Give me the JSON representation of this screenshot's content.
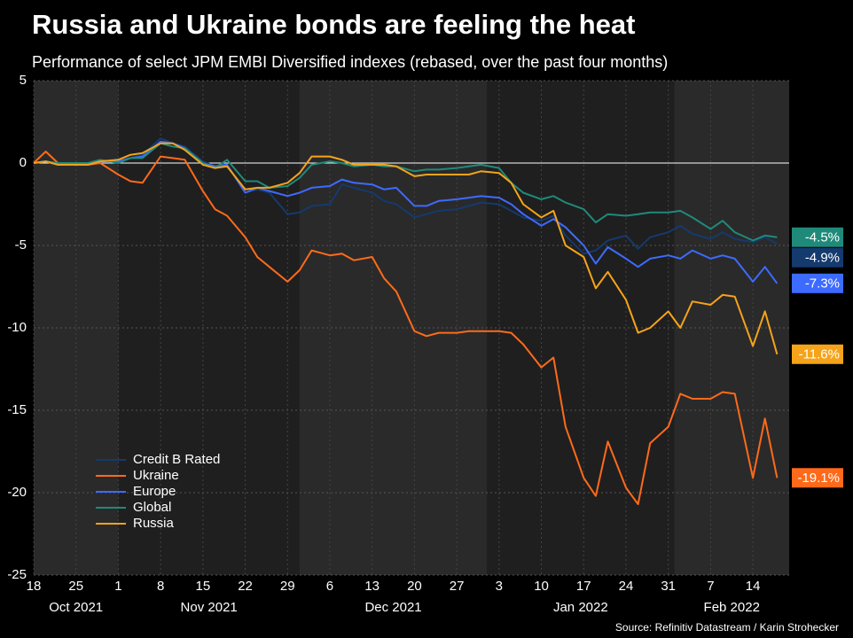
{
  "chart_data": {
    "type": "line",
    "title": "Russia and Ukraine bonds are feeling the heat",
    "subtitle": "Performance of select JPM EMBI Diversified indexes (rebased, over the past four months)",
    "source": "Source: Refinitiv Datastream / Karin Strohecker",
    "x": [
      "2021-10-18",
      "2021-10-20",
      "2021-10-22",
      "2021-10-25",
      "2021-10-27",
      "2021-10-29",
      "2021-11-01",
      "2021-11-03",
      "2021-11-05",
      "2021-11-08",
      "2021-11-10",
      "2021-11-12",
      "2021-11-15",
      "2021-11-17",
      "2021-11-19",
      "2021-11-22",
      "2021-11-24",
      "2021-11-26",
      "2021-11-29",
      "2021-12-01",
      "2021-12-03",
      "2021-12-06",
      "2021-12-08",
      "2021-12-10",
      "2021-12-13",
      "2021-12-15",
      "2021-12-17",
      "2021-12-20",
      "2021-12-22",
      "2021-12-24",
      "2021-12-27",
      "2021-12-29",
      "2021-12-31",
      "2022-01-03",
      "2022-01-05",
      "2022-01-07",
      "2022-01-10",
      "2022-01-12",
      "2022-01-14",
      "2022-01-17",
      "2022-01-19",
      "2022-01-21",
      "2022-01-24",
      "2022-01-26",
      "2022-01-28",
      "2022-01-31",
      "2022-02-02",
      "2022-02-04",
      "2022-02-07",
      "2022-02-09",
      "2022-02-11",
      "2022-02-14",
      "2022-02-16",
      "2022-02-18"
    ],
    "series": [
      {
        "name": "Credit B Rated",
        "color": "#143a6e",
        "last_value_label": "-4.9%",
        "values": [
          0,
          0.1,
          -0.1,
          -0.1,
          -0.1,
          0.1,
          0.1,
          0.3,
          0.5,
          1.5,
          1.2,
          1.0,
          0.1,
          -0.2,
          -0.1,
          -1.8,
          -1.6,
          -1.8,
          -3.1,
          -3.0,
          -2.6,
          -2.5,
          -1.3,
          -1.5,
          -1.8,
          -2.3,
          -2.5,
          -3.3,
          -3.1,
          -2.9,
          -2.8,
          -2.6,
          -2.4,
          -2.5,
          -2.9,
          -3.3,
          -3.5,
          -3.2,
          -4.4,
          -5.5,
          -5.3,
          -4.7,
          -4.4,
          -5.2,
          -4.5,
          -4.2,
          -3.8,
          -4.3,
          -4.6,
          -4.2,
          -4.6,
          -4.8,
          -4.5,
          -4.9
        ]
      },
      {
        "name": "Ukraine",
        "color": "#ff6a1a",
        "last_value_label": "-19.1%",
        "values": [
          0,
          0.7,
          0,
          -0.1,
          -0.1,
          0,
          -0.7,
          -1.1,
          -1.2,
          0.4,
          0.3,
          0.2,
          -1.7,
          -2.8,
          -3.2,
          -4.5,
          -5.7,
          -6.3,
          -7.2,
          -6.5,
          -5.3,
          -5.6,
          -5.5,
          -5.9,
          -5.7,
          -7.0,
          -7.8,
          -10.2,
          -10.5,
          -10.3,
          -10.3,
          -10.2,
          -10.2,
          -10.2,
          -10.3,
          -11.0,
          -12.4,
          -11.8,
          -16.0,
          -19.1,
          -20.2,
          -16.9,
          -19.7,
          -20.7,
          -17.0,
          -16.0,
          -14.0,
          -14.3,
          -14.3,
          -13.9,
          -14.0,
          -19.1,
          -15.5,
          -19.1
        ]
      },
      {
        "name": "Europe",
        "color": "#3d6bff",
        "last_value_label": "-7.3%",
        "values": [
          0,
          0.1,
          -0.1,
          -0.1,
          -0.1,
          0.1,
          0.1,
          0.3,
          0.4,
          1.3,
          1.2,
          0.9,
          0,
          -0.2,
          -0.1,
          -1.8,
          -1.5,
          -1.7,
          -2.0,
          -1.8,
          -1.5,
          -1.4,
          -1.0,
          -1.2,
          -1.3,
          -1.6,
          -1.5,
          -2.6,
          -2.6,
          -2.3,
          -2.2,
          -2.1,
          -2.0,
          -2.1,
          -2.5,
          -3.1,
          -3.8,
          -3.4,
          -3.9,
          -5.0,
          -6.1,
          -5.1,
          -5.8,
          -6.3,
          -5.8,
          -5.6,
          -5.8,
          -5.3,
          -5.8,
          -5.6,
          -5.8,
          -7.2,
          -6.3,
          -7.3
        ]
      },
      {
        "name": "Global",
        "color": "#1f8a7a",
        "last_value_label": "-4.5%",
        "values": [
          0,
          0.1,
          0,
          0,
          0,
          0.2,
          0,
          0.3,
          0.3,
          1.2,
          1.0,
          0.9,
          0,
          -0.3,
          0.2,
          -1.1,
          -1.1,
          -1.5,
          -1.4,
          -0.9,
          -0.1,
          0.1,
          0,
          -0.2,
          -0.1,
          -0.2,
          -0.2,
          -0.5,
          -0.4,
          -0.4,
          -0.3,
          -0.2,
          -0.1,
          -0.3,
          -1.2,
          -1.8,
          -2.2,
          -2.0,
          -2.4,
          -2.8,
          -3.6,
          -3.1,
          -3.2,
          -3.1,
          -3.0,
          -3.0,
          -2.9,
          -3.3,
          -4.0,
          -3.5,
          -4.2,
          -4.7,
          -4.4,
          -4.5
        ]
      },
      {
        "name": "Russia",
        "color": "#f5a31a",
        "last_value_label": "-11.6%",
        "values": [
          0,
          0.1,
          -0.1,
          -0.1,
          -0.1,
          0.1,
          0.2,
          0.5,
          0.6,
          1.2,
          1.2,
          0.8,
          -0.1,
          -0.3,
          -0.2,
          -1.6,
          -1.5,
          -1.5,
          -1.2,
          -0.6,
          0.4,
          0.4,
          0.2,
          -0.1,
          -0.1,
          -0.1,
          -0.2,
          -0.8,
          -0.7,
          -0.7,
          -0.7,
          -0.7,
          -0.5,
          -0.6,
          -1.2,
          -2.5,
          -3.3,
          -2.9,
          -5.0,
          -5.7,
          -7.6,
          -6.6,
          -8.3,
          -10.3,
          -10.0,
          -9.0,
          -10.0,
          -8.4,
          -8.6,
          -8.0,
          -8.1,
          -11.1,
          -9.0,
          -11.6
        ]
      }
    ],
    "xlim": [
      "2021-10-18",
      "2022-02-20"
    ],
    "xticks": [
      {
        "value": "2021-10-18",
        "label": "18"
      },
      {
        "value": "2021-10-25",
        "label": "25"
      },
      {
        "value": "2021-11-01",
        "label": "1"
      },
      {
        "value": "2021-11-08",
        "label": "8"
      },
      {
        "value": "2021-11-15",
        "label": "15"
      },
      {
        "value": "2021-11-22",
        "label": "22"
      },
      {
        "value": "2021-11-29",
        "label": "29"
      },
      {
        "value": "2021-12-06",
        "label": "6"
      },
      {
        "value": "2021-12-13",
        "label": "13"
      },
      {
        "value": "2021-12-20",
        "label": "20"
      },
      {
        "value": "2021-12-27",
        "label": "27"
      },
      {
        "value": "2022-01-03",
        "label": "3"
      },
      {
        "value": "2022-01-10",
        "label": "10"
      },
      {
        "value": "2022-01-17",
        "label": "17"
      },
      {
        "value": "2022-01-24",
        "label": "24"
      },
      {
        "value": "2022-01-31",
        "label": "31"
      },
      {
        "value": "2022-02-07",
        "label": "7"
      },
      {
        "value": "2022-02-14",
        "label": "14"
      }
    ],
    "month_labels": [
      {
        "value": "2021-10",
        "label": "Oct 2021"
      },
      {
        "value": "2021-11",
        "label": "Nov 2021"
      },
      {
        "value": "2021-12",
        "label": "Dec 2021"
      },
      {
        "value": "2022-01",
        "label": "Jan 2022"
      },
      {
        "value": "2022-02",
        "label": "Feb 2022"
      }
    ],
    "ylim": [
      -25,
      5
    ],
    "yticks": [
      5,
      0,
      -5,
      -10,
      -15,
      -20,
      -25
    ],
    "grid": true,
    "zero_line": true,
    "legend": "lower-left"
  }
}
